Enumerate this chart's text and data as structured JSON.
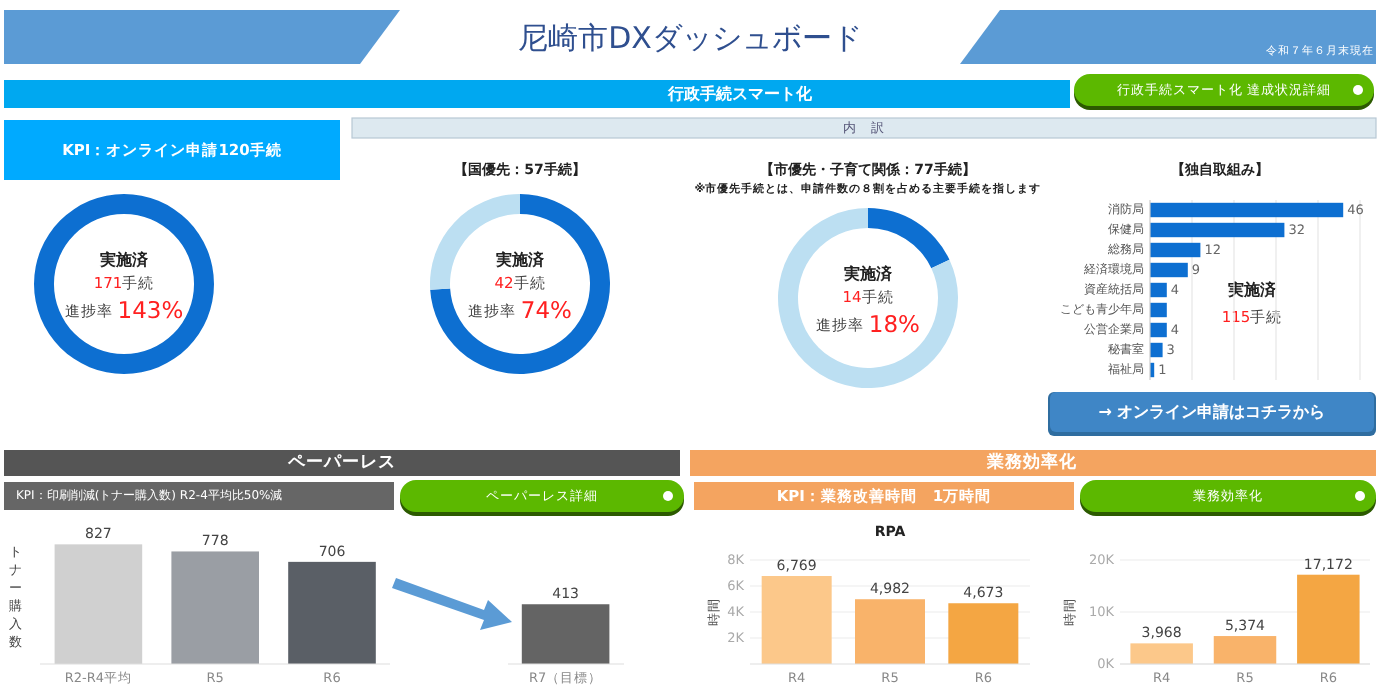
{
  "chart_data": [
    {
      "type": "donut",
      "title": "KPI：オンライン申請120手続",
      "categories": [
        null
      ],
      "values": [
        100
      ],
      "colors": [
        "#0d6fd1"
      ],
      "annotations": [
        "尼崎市DXダッシュボード",
        "令和７年６月末現在",
        "行政手続スマート化",
        "行政手続スマート化 達成状況詳細",
        "実施済",
        "171手続",
        "進捗率 143%"
      ]
    },
    {
      "type": "donut",
      "title": "【国優先：57手続】",
      "categories": [
        null,
        null
      ],
      "values": [
        74,
        26
      ],
      "colors": [
        "#0d6fd1",
        "#bcdff2"
      ],
      "annotations": [
        "内　訳",
        "実施済",
        "42手続",
        "進捗率 74%"
      ]
    },
    {
      "type": "donut",
      "title": "【市優先・子育て関係：77手続】",
      "subtitle": "※市優先手続とは、申請件数の８割を占める主要手続を指します",
      "categories": [
        null,
        null
      ],
      "values": [
        18,
        82
      ],
      "colors": [
        "#0d6fd1",
        "#bcdff2"
      ],
      "annotations": [
        "実施済",
        "14手続",
        "進捗率 18%"
      ]
    },
    {
      "type": "bar",
      "orientation": "horizontal",
      "title": "【独自取組み】",
      "categories": [
        "消防局",
        "保健局",
        "総務局",
        "経済環境局",
        "資産統括局",
        "こども青少年局",
        "公営企業局",
        "秘書室",
        "福祉局"
      ],
      "values": [
        46,
        32,
        12,
        9,
        4,
        4,
        4,
        3,
        1
      ],
      "value_labels": [
        "46",
        "32",
        "12",
        "9",
        "4",
        null,
        "4",
        "3",
        "1"
      ],
      "color": "#0d6fd1",
      "xlim": [
        0,
        50
      ],
      "xticks": [
        {
          "value": 10,
          "label": null
        },
        {
          "value": 20,
          "label": null
        },
        {
          "value": 30,
          "label": null
        },
        {
          "value": 40,
          "label": null
        },
        {
          "value": 50,
          "label": null
        }
      ],
      "grid": "x",
      "annotations": [
        "実施済",
        "115手続",
        "→ オンライン申請はコチラから"
      ]
    },
    {
      "type": "bar",
      "title": "ペーパーレス",
      "ylabel": "トナー購入数",
      "categories": [
        "R2-R4平均",
        "R5",
        "R6",
        null,
        "R7（目標）"
      ],
      "values": [
        827,
        778,
        706,
        null,
        413
      ],
      "colors": [
        "#d0d0d0",
        "#9a9ea4",
        "#5a5f66",
        null,
        "#646464"
      ],
      "data_labels": true,
      "annotations": [
        "KPI：印刷削減(トナー購入数)  R2-4平均比50%減",
        "ペーパーレス詳細"
      ]
    },
    {
      "type": "bar",
      "title": "RPA",
      "ylabel": "時間",
      "categories": [
        "R4",
        "R5",
        "R6"
      ],
      "values": [
        6769,
        4982,
        4673
      ],
      "value_labels": [
        "6,769",
        "4,982",
        "4,673"
      ],
      "colors": [
        "#fcc88a",
        "#f9b36a",
        "#f4a643"
      ],
      "ylim": [
        0,
        8000
      ],
      "yticks": [
        {
          "value": 2000,
          "label": "2K"
        },
        {
          "value": 4000,
          "label": "4K"
        },
        {
          "value": 6000,
          "label": "6K"
        },
        {
          "value": 8000,
          "label": "8K"
        }
      ],
      "grid": "y",
      "annotations": [
        "業務効率化",
        "KPI：業務改善時間　1万時間",
        "業務効率化"
      ]
    },
    {
      "type": "bar",
      "ylabel": "時間",
      "categories": [
        "R4",
        "R5",
        "R6"
      ],
      "values": [
        3968,
        5374,
        17172
      ],
      "value_labels": [
        "3,968",
        "5,374",
        "17,172"
      ],
      "colors": [
        "#fcc88a",
        "#f9b36a",
        "#f4a643"
      ],
      "ylim": [
        0,
        20000
      ],
      "yticks": [
        {
          "value": 0,
          "label": "0K"
        },
        {
          "value": 10000,
          "label": "10K"
        },
        {
          "value": 20000,
          "label": "20K"
        }
      ],
      "grid": "y"
    }
  ]
}
